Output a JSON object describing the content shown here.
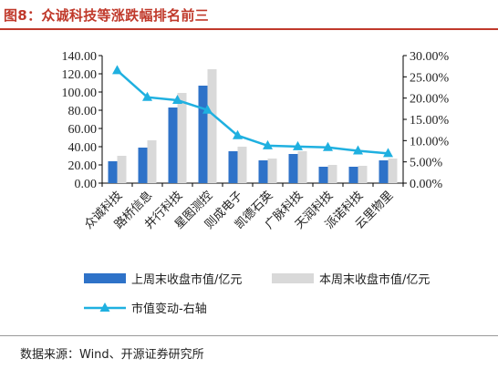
{
  "title": "图8：众诚科技等涨跌幅排名前三",
  "source": "数据来源：Wind、开源证券研究所",
  "colors": {
    "title": "#c0392b",
    "prev_week": "#2e72c8",
    "this_week": "#d9d9d9",
    "change_line": "#1fb0e0",
    "axis": "#000000"
  },
  "chart_data": {
    "type": "bar",
    "categories": [
      "众诚科技",
      "路桥信息",
      "井行科技",
      "星图测控",
      "则成电子",
      "凯德石英",
      "广脉科技",
      "天润科技",
      "派诺科技",
      "云里物里"
    ],
    "series": [
      {
        "name": "上周末收盘市值/亿元",
        "type": "bar",
        "axis": "left",
        "values": [
          24,
          39,
          83,
          107,
          35,
          25,
          32,
          18,
          18,
          25
        ]
      },
      {
        "name": "本周末收盘市值/亿元",
        "type": "bar",
        "axis": "left",
        "values": [
          30,
          47,
          99,
          125,
          40,
          27,
          35,
          20,
          19,
          27
        ]
      },
      {
        "name": "市值变动-右轴",
        "type": "line",
        "axis": "right",
        "marker": "triangle",
        "values": [
          26.5,
          20.2,
          19.5,
          17.2,
          11.2,
          8.8,
          8.6,
          8.4,
          7.6,
          7.0
        ]
      }
    ],
    "left_axis": {
      "min": 0,
      "max": 140,
      "step": 20,
      "tick_labels": [
        "0.00",
        "20.00",
        "40.00",
        "60.00",
        "80.00",
        "100.00",
        "120.00",
        "140.00"
      ]
    },
    "right_axis": {
      "min": 0,
      "max": 30,
      "step": 5,
      "tick_labels": [
        "0.00%",
        "5.00%",
        "10.00%",
        "15.00%",
        "20.00%",
        "25.00%",
        "30.00%"
      ]
    },
    "legend_position": "bottom",
    "grid": false
  }
}
